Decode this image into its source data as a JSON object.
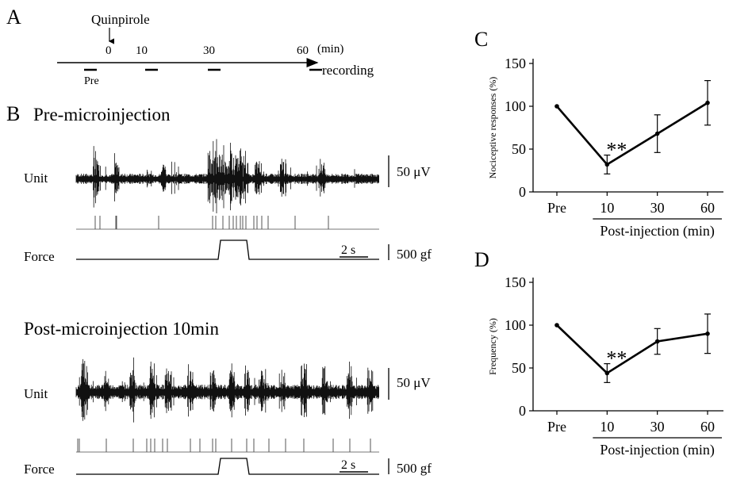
{
  "panel_a": {
    "letter": "A",
    "drug": "Quinpirole",
    "ticks": [
      "0",
      "10",
      "30",
      "60"
    ],
    "unit": "(min)",
    "axis_label": "recording",
    "pre_label": "Pre"
  },
  "panel_b": {
    "letter": "B",
    "pre": {
      "title": "Pre-microinjection",
      "unit_label": "Unit",
      "force_label": "Force",
      "voltage_scale": "50 μV",
      "force_scale": "500 gf",
      "time_scale": "2 s"
    },
    "post": {
      "title": "Post-microinjection 10min",
      "unit_label": "Unit",
      "force_label": "Force",
      "voltage_scale": "50 μV",
      "force_scale": "500 gf",
      "time_scale": "2 s"
    }
  },
  "chart_data": [
    {
      "panel": "C",
      "type": "line",
      "categories": [
        "Pre",
        "10",
        "30",
        "60"
      ],
      "values": [
        100,
        32,
        68,
        104
      ],
      "errors": [
        0,
        11,
        22,
        26
      ],
      "significance": [
        "",
        "**",
        "",
        ""
      ],
      "ylabel": "Nociceptive responses (%)",
      "xlabel": "Post-injection (min)",
      "ylim": [
        0,
        150
      ],
      "yticks": [
        "0",
        "50",
        "100",
        "150"
      ]
    },
    {
      "panel": "D",
      "type": "line",
      "categories": [
        "Pre",
        "10",
        "30",
        "60"
      ],
      "values": [
        100,
        44,
        81,
        90
      ],
      "errors": [
        0,
        11,
        15,
        23
      ],
      "significance": [
        "",
        "**",
        "",
        ""
      ],
      "ylabel": "Frequency (%)",
      "xlabel": "Post-injection (min)",
      "ylim": [
        0,
        150
      ],
      "yticks": [
        "0",
        "50",
        "100",
        "150"
      ]
    }
  ]
}
